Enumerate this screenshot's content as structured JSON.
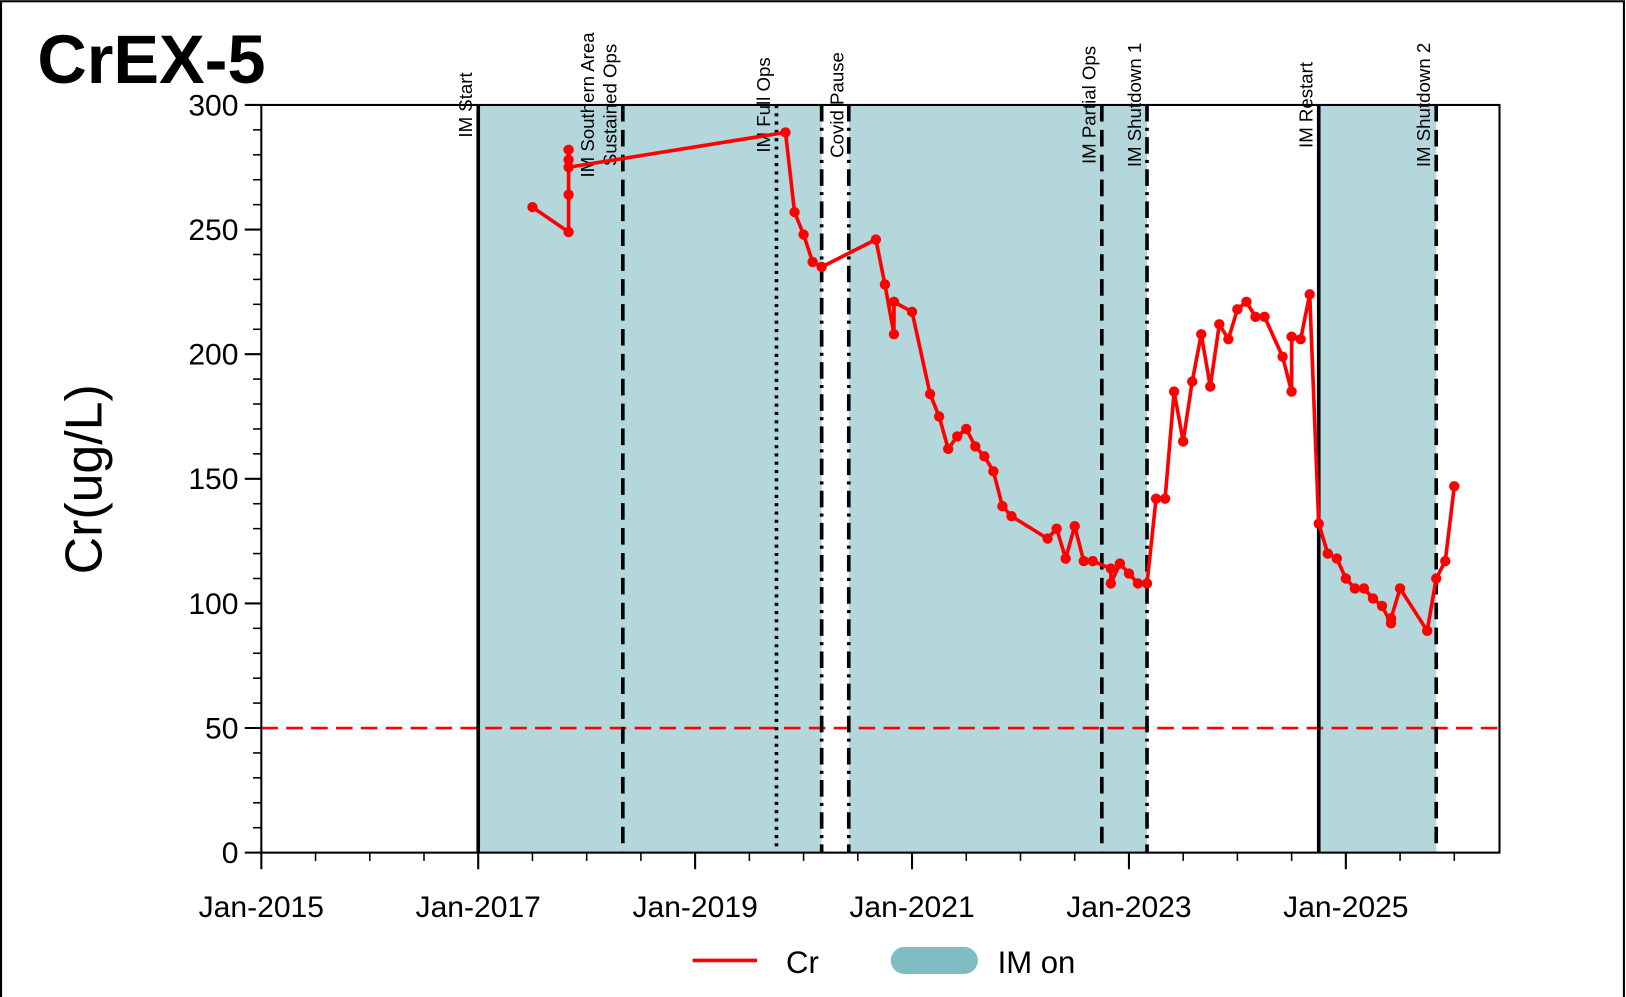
{
  "chart_data": {
    "type": "line",
    "title": "CrEX-5",
    "ylabel": "Cr(ug/L)",
    "xlim": [
      "2015-01",
      "2026-06"
    ],
    "xticks": [
      {
        "value": "2015-01",
        "label": "Jan-2015"
      },
      {
        "value": "2017-01",
        "label": "Jan-2017"
      },
      {
        "value": "2019-01",
        "label": "Jan-2019"
      },
      {
        "value": "2021-01",
        "label": "Jan-2021"
      },
      {
        "value": "2023-01",
        "label": "Jan-2023"
      },
      {
        "value": "2025-01",
        "label": "Jan-2025"
      }
    ],
    "xminor_months": 6,
    "ylim": [
      0,
      300
    ],
    "yticks": [
      0,
      50,
      100,
      150,
      200,
      250,
      300
    ],
    "yminor_step": 10,
    "x": [
      "2017-07",
      "2017-11",
      "2017-11",
      "2017-11",
      "2017-11",
      "2017-11",
      "2019-11",
      "2019-12",
      "2020-01",
      "2020-02",
      "2020-03",
      "2020-09",
      "2020-10",
      "2020-11",
      "2020-11",
      "2021-01",
      "2021-03",
      "2021-04",
      "2021-05",
      "2021-06",
      "2021-07",
      "2021-08",
      "2021-09",
      "2021-10",
      "2021-11",
      "2021-12",
      "2022-04",
      "2022-05",
      "2022-06",
      "2022-07",
      "2022-08",
      "2022-09",
      "2022-11",
      "2022-11",
      "2022-12",
      "2023-01",
      "2023-02",
      "2023-03",
      "2023-04",
      "2023-05",
      "2023-06",
      "2023-07",
      "2023-08",
      "2023-09",
      "2023-10",
      "2023-11",
      "2023-12",
      "2024-01",
      "2024-02",
      "2024-03",
      "2024-04",
      "2024-06",
      "2024-07",
      "2024-07",
      "2024-08",
      "2024-09",
      "2024-10",
      "2024-11",
      "2024-12",
      "2025-01",
      "2025-02",
      "2025-03",
      "2025-04",
      "2025-05",
      "2025-06",
      "2025-06",
      "2025-07",
      "2025-10",
      "2025-11",
      "2025-12",
      "2026-01"
    ],
    "series": [
      {
        "name": "Cr",
        "color": "#ff0000",
        "values": [
          259,
          249,
          264,
          282,
          278,
          275,
          289,
          257,
          248,
          237,
          235,
          246,
          228,
          208,
          221,
          217,
          184,
          175,
          162,
          167,
          170,
          163,
          159,
          153,
          139,
          135,
          126,
          130,
          118,
          131,
          117,
          117,
          114,
          108,
          116,
          112,
          108,
          108,
          142,
          142,
          185,
          165,
          189,
          208,
          187,
          212,
          206,
          218,
          221,
          215,
          215,
          199,
          185,
          207,
          206,
          224,
          132,
          120,
          118,
          110,
          106,
          106,
          102,
          99,
          92,
          94,
          106,
          89,
          110,
          117,
          147
        ]
      }
    ],
    "reference_line": {
      "value": 50,
      "color": "#ff0000",
      "style": "dashed"
    },
    "spans": {
      "name": "IM on",
      "color": "#b3d7da",
      "legend_color": "#80bdc2",
      "ranges": [
        {
          "start": "2017-01",
          "end": "2020-03"
        },
        {
          "start": "2020-06",
          "end": "2023-03"
        },
        {
          "start": "2024-10",
          "end": "2025-11"
        }
      ]
    },
    "events": [
      {
        "label": [
          "IM Start"
        ],
        "x": "2017-01",
        "style": "solid"
      },
      {
        "label": [
          "IM Southern Area",
          "Sustained Ops"
        ],
        "x": "2018-05",
        "style": "dashed"
      },
      {
        "label": [
          "IM Full Ops"
        ],
        "x": "2019-10",
        "style": "dotted"
      },
      {
        "label": [
          "Covid Pause"
        ],
        "x": "2020-03",
        "x_end": "2020-06",
        "style": "dashdot"
      },
      {
        "label": [
          "IM Partial Ops"
        ],
        "x": "2022-10",
        "style": "dashed"
      },
      {
        "label": [
          "IM Shutdown 1"
        ],
        "x": "2023-03",
        "style": "dashdot"
      },
      {
        "label": [
          "IM Restart"
        ],
        "x": "2024-10",
        "style": "solid"
      },
      {
        "label": [
          "IM Shutdown 2"
        ],
        "x": "2025-11",
        "style": "dashed"
      }
    ]
  }
}
